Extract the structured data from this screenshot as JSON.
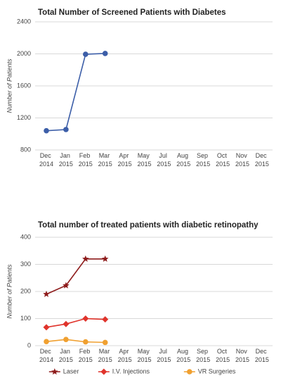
{
  "chart_data": [
    {
      "type": "line",
      "title": "Total Number of Screened Patients with Diabetes",
      "y_label": "Number of Patients",
      "categories": [
        "Dec 2014",
        "Jan 2015",
        "Feb 2015",
        "Mar 2015",
        "Apr 2015",
        "May 2015",
        "Jul 2015",
        "Aug 2015",
        "Sep 2015",
        "Oct 2015",
        "Nov 2015",
        "Dec 2015"
      ],
      "ylim": [
        800,
        2400
      ],
      "yticks": [
        800,
        1200,
        1600,
        2000,
        2400
      ],
      "grid": true,
      "series": [
        {
          "color": "#3c5ea8",
          "marker": "circle",
          "values": [
            1040,
            1055,
            1995,
            2005,
            null,
            null,
            null,
            null,
            null,
            null,
            null,
            null
          ]
        }
      ]
    },
    {
      "type": "line",
      "title": "Total number of treated patients with diabetic retinopathy",
      "y_label": "Number of Patients",
      "categories": [
        "Dec 2014",
        "Jan 2015",
        "Feb 2015",
        "Mar 2015",
        "Apr 2015",
        "May 2015",
        "Jul 2015",
        "Aug 2015",
        "Sep 2015",
        "Oct 2015",
        "Nov 2015",
        "Dec 2015"
      ],
      "ylim": [
        0,
        400
      ],
      "yticks": [
        0,
        100,
        200,
        300,
        400
      ],
      "grid": true,
      "legend": "bottom",
      "series": [
        {
          "name": "Laser",
          "color": "#8e1c1c",
          "marker": "star",
          "values": [
            190,
            222,
            320,
            320,
            null,
            null,
            null,
            null,
            null,
            null,
            null,
            null
          ]
        },
        {
          "name": "I.V. Injections",
          "color": "#e0342c",
          "marker": "diamond",
          "values": [
            68,
            80,
            100,
            97,
            null,
            null,
            null,
            null,
            null,
            null,
            null,
            null
          ]
        },
        {
          "name": "VR Surgeries",
          "color": "#f0a030",
          "marker": "circle",
          "values": [
            15,
            23,
            14,
            12,
            null,
            null,
            null,
            null,
            null,
            null,
            null,
            null
          ]
        }
      ]
    }
  ]
}
